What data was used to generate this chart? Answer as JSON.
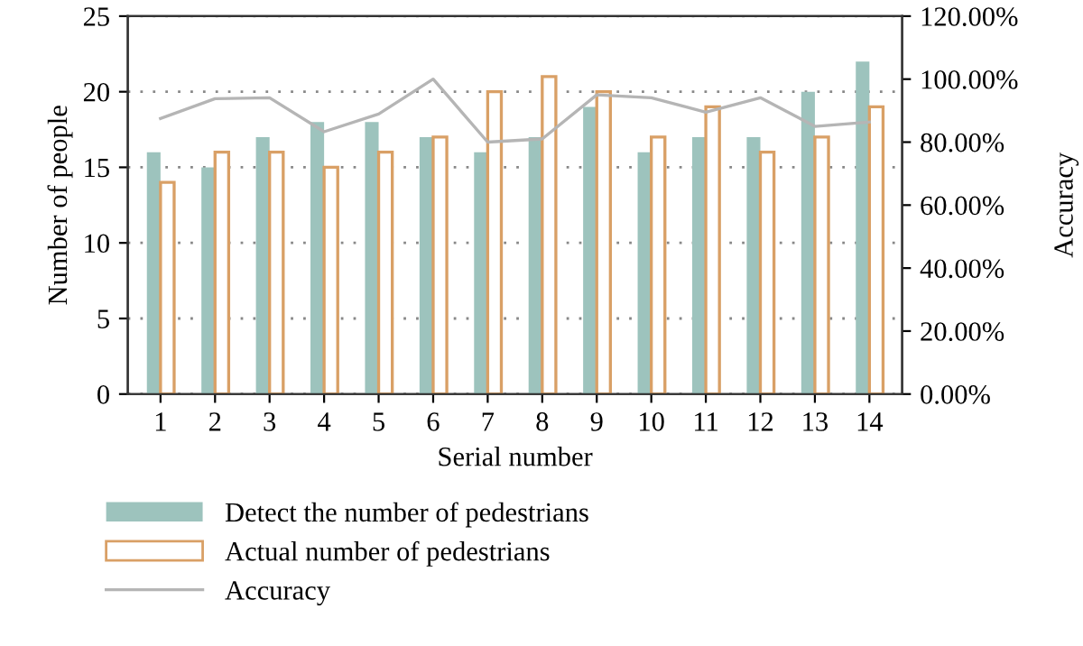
{
  "chart_data": {
    "type": "bar",
    "categories": [
      "1",
      "2",
      "3",
      "4",
      "5",
      "6",
      "7",
      "8",
      "9",
      "10",
      "11",
      "12",
      "13",
      "14"
    ],
    "xlabel": "Serial number",
    "ylabel": "Number of people",
    "y2label": "Accuracy",
    "series": [
      {
        "name": "Detect the number of pedestrians",
        "color": "#9dc3bd",
        "values": [
          16,
          15,
          17,
          18,
          18,
          17,
          16,
          17,
          19,
          16,
          17,
          17,
          20,
          22
        ]
      },
      {
        "name": "Actual number of pedestrians",
        "color": "#d9a066",
        "values": [
          14,
          16,
          16,
          15,
          16,
          17,
          20,
          21,
          20,
          17,
          19,
          16,
          17,
          19
        ]
      },
      {
        "name": "Accuracy",
        "type": "line",
        "axis": "y2",
        "color": "#b5b5b5",
        "values": [
          87.5,
          93.8,
          94.1,
          83.3,
          88.9,
          100,
          80,
          81,
          95,
          94.1,
          89.5,
          94.1,
          85,
          86.4
        ]
      }
    ],
    "ylim": [
      0,
      25
    ],
    "yticks": [
      0,
      5,
      10,
      15,
      20,
      25
    ],
    "y2lim": [
      0,
      120
    ],
    "y2ticks": [
      {
        "value": 0,
        "label": "0.00%"
      },
      {
        "value": 20,
        "label": "20.00%"
      },
      {
        "value": 40,
        "label": "40.00%"
      },
      {
        "value": 60,
        "label": "60.00%"
      },
      {
        "value": 80,
        "label": "80.00%"
      },
      {
        "value": 100,
        "label": "100.00%"
      },
      {
        "value": 120,
        "label": "120.00%"
      }
    ],
    "grid": "y",
    "legend": "bottom"
  }
}
